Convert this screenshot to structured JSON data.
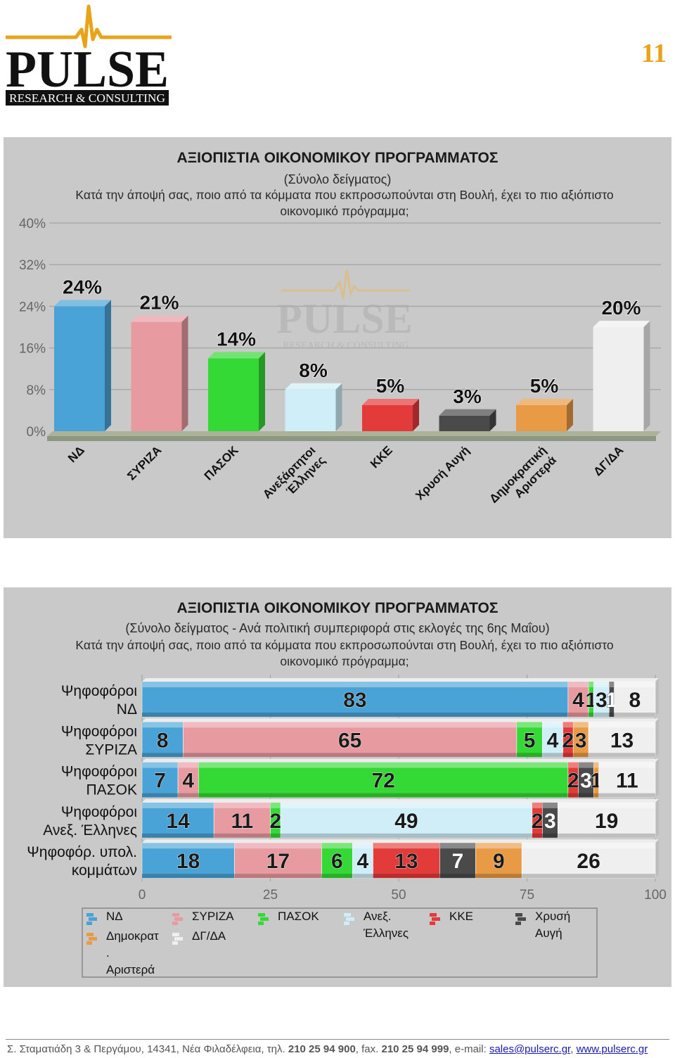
{
  "header": {
    "logo_text": "PULSE",
    "logo_subtext": "RESEARCH & CONSULTING",
    "page_number": "11"
  },
  "colors": {
    "nd": "#4aa3d6",
    "syriza": "#e79aa0",
    "pasok": "#35d935",
    "anel": "#cfeef8",
    "kke": "#e33a3a",
    "xa": "#4a4a4a",
    "dimar": "#e89a45",
    "dgda": "#efefef",
    "accent": "#e8a317"
  },
  "chart_data": [
    {
      "type": "bar",
      "title": "ΑΞΙΟΠΙΣΤΙΑ ΟΙΚΟΝΟΜΙΚΟΥ ΠΡΟΓΡΑΜΜΑΤΟΣ",
      "subtitle": "(Σύνολο δείγματος)",
      "question": "Κατά την άποψή σας, ποιο από τα κόμματα που εκπροσωπούνται στη Βουλή, έχει το πιο αξιόπιστο οικονομικό πρόγραμμα;",
      "categories": [
        "ΝΔ",
        "ΣΥΡΙΖΑ",
        "ΠΑΣΟΚ",
        "Ανεξάρτητοι Έλληνες",
        "ΚΚΕ",
        "Χρυσή Αυγή",
        "Δημοκρατική Αριστερά",
        "ΔΓ/ΔΑ"
      ],
      "category_lines": [
        [
          "ΝΔ"
        ],
        [
          "ΣΥΡΙΖΑ"
        ],
        [
          "ΠΑΣΟΚ"
        ],
        [
          "Ανεξάρτητοι",
          "Έλληνες"
        ],
        [
          "ΚΚΕ"
        ],
        [
          "Χρυσή Αυγή"
        ],
        [
          "Δημοκρατική",
          "Αριστερά"
        ],
        [
          "ΔΓ/ΔΑ"
        ]
      ],
      "values": [
        24,
        21,
        14,
        8,
        5,
        3,
        5,
        20
      ],
      "value_labels": [
        "24%",
        "21%",
        "14%",
        "8%",
        "5%",
        "3%",
        "5%",
        "20%"
      ],
      "bar_colors": [
        "#4aa3d6",
        "#e79aa0",
        "#35d935",
        "#cfeef8",
        "#e33a3a",
        "#4a4a4a",
        "#e89a45",
        "#efefef"
      ],
      "y_ticks": [
        "0%",
        "8%",
        "16%",
        "24%",
        "32%",
        "40%"
      ],
      "y_tick_values": [
        0,
        8,
        16,
        24,
        32,
        40
      ],
      "ylim": [
        0,
        40
      ],
      "watermark": "PULSE",
      "watermark_sub": "RESEARCH & CONSULTING"
    },
    {
      "type": "bar",
      "orientation": "horizontal-stacked",
      "title": "ΑΞΙΟΠΙΣΤΙΑ ΟΙΚΟΝΟΜΙΚΟΥ ΠΡΟΓΡΑΜΜΑΤΟΣ",
      "subtitle": "(Σύνολο δείγματος - Ανά πολιτική συμπεριφορά στις εκλογές της 6ης Μαΐου)",
      "question": "Κατά την άποψή σας, ποιο από τα κόμματα που εκπροσωπούνται στη Βουλή, έχει το πιο αξιόπιστο οικονομικό πρόγραμμα;",
      "rows": [
        {
          "label_lines": [
            "Ψηφοφόροι",
            "ΝΔ"
          ],
          "values": [
            83,
            4,
            1,
            3,
            0,
            1,
            0,
            8
          ]
        },
        {
          "label_lines": [
            "Ψηφοφόροι",
            "ΣΥΡΙΖΑ"
          ],
          "values": [
            8,
            65,
            5,
            4,
            2,
            0,
            3,
            13
          ]
        },
        {
          "label_lines": [
            "Ψηφοφόροι",
            "ΠΑΣΟΚ"
          ],
          "values": [
            7,
            4,
            72,
            0,
            2,
            3,
            1,
            11
          ]
        },
        {
          "label_lines": [
            "Ψηφοφόροι",
            "Ανεξ. Έλληνες"
          ],
          "values": [
            14,
            11,
            2,
            49,
            2,
            3,
            0,
            19
          ]
        },
        {
          "label_lines": [
            "Ψηφοφόρ. υπολ.",
            "κομμάτων"
          ],
          "values": [
            18,
            17,
            6,
            4,
            13,
            7,
            9,
            26
          ]
        }
      ],
      "series": [
        {
          "name": "ΝΔ",
          "color": "#4aa3d6",
          "label_color": "#1a1a1a"
        },
        {
          "name": "ΣΥΡΙΖΑ",
          "color": "#e79aa0",
          "label_color": "#1a1a1a"
        },
        {
          "name": "ΠΑΣΟΚ",
          "color": "#35d935",
          "label_color": "#1a1a1a"
        },
        {
          "name": "Ανεξ. Έλληνες",
          "color": "#cfeef8",
          "label_color": "#1a1a1a"
        },
        {
          "name": "ΚΚΕ",
          "color": "#e33a3a",
          "label_color": "#1a1a1a"
        },
        {
          "name": "Χρυσή Αυγή",
          "color": "#4a4a4a",
          "label_color": "#ffffff"
        },
        {
          "name": "Δημοκρατ. Αριστερά",
          "color": "#e89a45",
          "label_color": "#1a1a1a"
        },
        {
          "name": "ΔΓ/ΔΑ",
          "color": "#efefef",
          "label_color": "#1a1a1a"
        }
      ],
      "legend_entries": [
        {
          "lines": [
            "ΝΔ"
          ],
          "color": "#4aa3d6"
        },
        {
          "lines": [
            "ΣΥΡΙΖΑ"
          ],
          "color": "#e79aa0"
        },
        {
          "lines": [
            "ΠΑΣΟΚ"
          ],
          "color": "#35d935"
        },
        {
          "lines": [
            "Ανεξ.",
            "Έλληνες"
          ],
          "color": "#cfeef8"
        },
        {
          "lines": [
            "ΚΚΕ"
          ],
          "color": "#e33a3a"
        },
        {
          "lines": [
            "Χρυσή",
            "Αυγή"
          ],
          "color": "#4a4a4a"
        },
        {
          "lines": [
            "Δημοκρατ",
            ".",
            "Αριστερά"
          ],
          "color": "#e89a45"
        },
        {
          "lines": [
            "ΔΓ/ΔΑ"
          ],
          "color": "#efefef"
        }
      ],
      "x_ticks": [
        "0",
        "25",
        "50",
        "75",
        "100"
      ],
      "x_tick_values": [
        0,
        25,
        50,
        75,
        100
      ],
      "xlim": [
        0,
        100
      ],
      "legend_position": "bottom"
    }
  ],
  "footer": {
    "address": "Σ. Σταματιάδη 3  &  Περγάμου,  14341,  Νέα Φιλαδέλφεια,  τηλ.",
    "phone": "210 25 94 900",
    "fax_label": ",  fax.",
    "fax": "210 25 94 999",
    "email_label": ",  e-mail:",
    "email": "sales@pulserc.gr",
    "sep": ",",
    "website": "www.pulserc.gr"
  }
}
